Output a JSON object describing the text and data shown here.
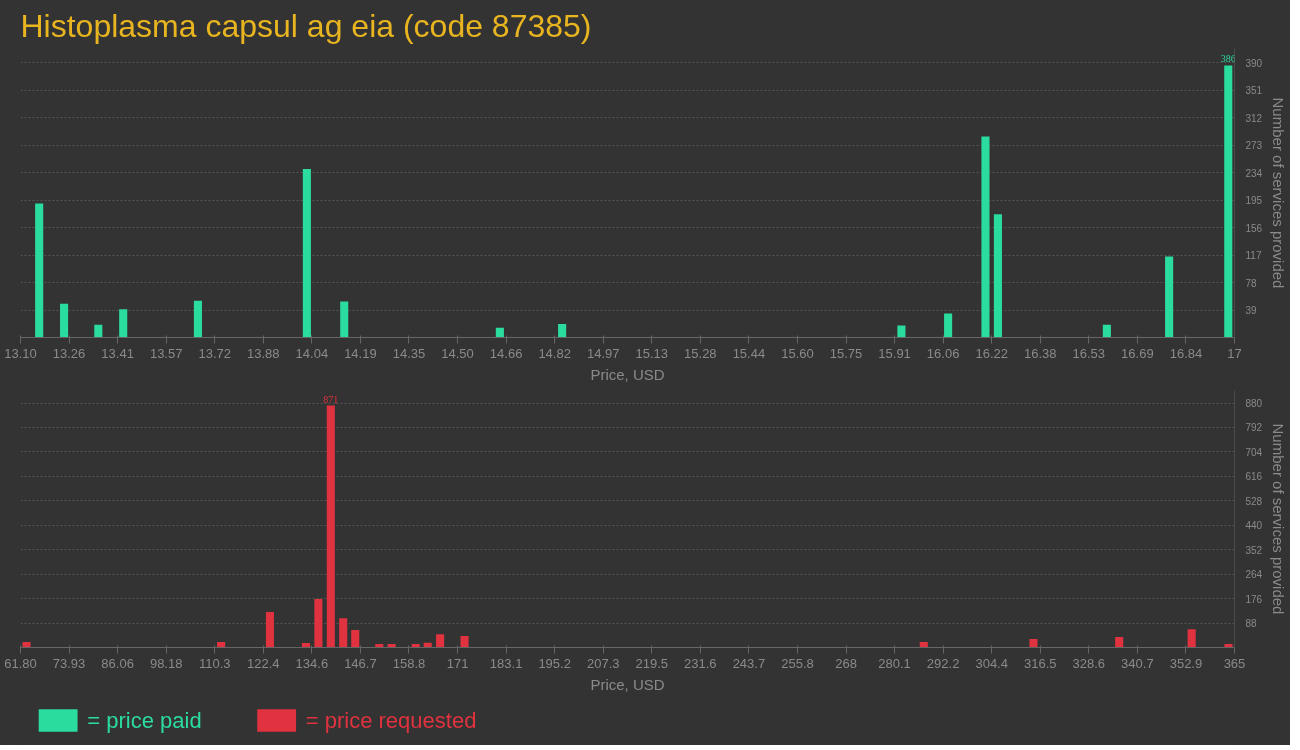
{
  "chart_data": [
    {
      "type": "bar",
      "title": "Histoplasma capsul ag eia (code 87385)",
      "xlabel": "Price, USD",
      "ylabel": "Number of services provided",
      "series": [
        {
          "name": "= price paid",
          "color": "#2bdc9f",
          "x": [
            13.16,
            13.24,
            13.35,
            13.43,
            13.67,
            14.02,
            14.14,
            14.64,
            14.84,
            15.93,
            16.08,
            16.2,
            16.24,
            16.59,
            16.79,
            16.98
          ],
          "values": [
            190,
            48,
            18,
            40,
            52,
            239,
            51,
            14,
            19,
            17,
            34,
            285,
            175,
            18,
            115,
            386
          ],
          "value_labels": [
            null,
            null,
            null,
            null,
            null,
            null,
            null,
            null,
            null,
            null,
            null,
            null,
            null,
            null,
            null,
            "386"
          ]
        }
      ],
      "xlim": [
        13.1,
        17
      ],
      "ylim": [
        0,
        410
      ],
      "xticks": [
        {
          "value": 13.1,
          "label": "13.10"
        },
        {
          "value": 13.256,
          "label": "13.26"
        },
        {
          "value": 13.412,
          "label": "13.41"
        },
        {
          "value": 13.568,
          "label": "13.57"
        },
        {
          "value": 13.724,
          "label": "13.72"
        },
        13.88,
        {
          "value": 14.036,
          "label": "14.04"
        },
        {
          "value": 14.192,
          "label": "14.19"
        },
        {
          "value": 14.348,
          "label": "14.35"
        },
        {
          "value": 14.504,
          "label": "14.50"
        },
        14.66,
        {
          "value": 14.816,
          "label": "14.82"
        },
        {
          "value": 14.972,
          "label": "14.97"
        },
        {
          "value": 15.128,
          "label": "15.13"
        },
        {
          "value": 15.284,
          "label": "15.28"
        },
        15.44,
        {
          "value": 15.596,
          "label": "15.60"
        },
        {
          "value": 15.752,
          "label": "15.75"
        },
        {
          "value": 15.908,
          "label": "15.91"
        },
        {
          "value": 16.064,
          "label": "16.06"
        },
        16.22,
        {
          "value": 16.376,
          "label": "16.38"
        },
        {
          "value": 16.532,
          "label": "16.53"
        },
        {
          "value": 16.688,
          "label": "16.69"
        },
        {
          "value": 16.844,
          "label": "16.84"
        },
        17
      ],
      "yticks": [
        39,
        78,
        117,
        156,
        195,
        234,
        273,
        312,
        351,
        390
      ],
      "grid": "y",
      "legend": "bottom left"
    },
    {
      "type": "bar",
      "xlabel": "Price, USD",
      "ylabel": "Number of services provided",
      "series": [
        {
          "name": "= price requested",
          "color": "#e0323f",
          "x": [
            63.3,
            111.9,
            124.1,
            133.1,
            136.2,
            139.3,
            142.4,
            145.4,
            151.4,
            154.5,
            160.5,
            163.5,
            166.6,
            172.7,
            287.4,
            314.8,
            336.2,
            354.3,
            363.5
          ],
          "values": [
            20,
            20,
            128,
            16,
            175,
            871,
            105,
            63,
            13,
            13,
            13,
            17,
            48,
            41,
            20,
            31,
            38,
            66,
            13
          ],
          "value_labels": [
            null,
            null,
            null,
            null,
            null,
            "871",
            null,
            null,
            null,
            null,
            null,
            null,
            null,
            null,
            null,
            null,
            null,
            null,
            null
          ]
        }
      ],
      "xlim": [
        61.8,
        365
      ],
      "ylim": [
        0,
        925
      ],
      "xticks": [
        {
          "value": 61.8,
          "label": "61.80"
        },
        {
          "value": 73.928,
          "label": "73.93"
        },
        {
          "value": 86.056,
          "label": "86.06"
        },
        {
          "value": 98.184,
          "label": "98.18"
        },
        {
          "value": 110.312,
          "label": "110.3"
        },
        {
          "value": 122.44,
          "label": "122.4"
        },
        {
          "value": 134.568,
          "label": "134.6"
        },
        {
          "value": 146.696,
          "label": "146.7"
        },
        {
          "value": 158.824,
          "label": "158.8"
        },
        {
          "value": 170.952,
          "label": "171"
        },
        {
          "value": 183.08,
          "label": "183.1"
        },
        {
          "value": 195.208,
          "label": "195.2"
        },
        {
          "value": 207.336,
          "label": "207.3"
        },
        {
          "value": 219.464,
          "label": "219.5"
        },
        {
          "value": 231.592,
          "label": "231.6"
        },
        {
          "value": 243.72,
          "label": "243.7"
        },
        {
          "value": 255.848,
          "label": "255.8"
        },
        {
          "value": 267.976,
          "label": "268"
        },
        {
          "value": 280.104,
          "label": "280.1"
        },
        {
          "value": 292.232,
          "label": "292.2"
        },
        {
          "value": 304.36,
          "label": "304.4"
        },
        {
          "value": 316.488,
          "label": "316.5"
        },
        {
          "value": 328.616,
          "label": "328.6"
        },
        {
          "value": 340.744,
          "label": "340.7"
        },
        {
          "value": 352.872,
          "label": "352.9"
        },
        365
      ],
      "yticks": [
        88,
        176,
        264,
        352,
        440,
        528,
        616,
        704,
        792,
        880
      ],
      "grid": "y",
      "legend": "bottom left"
    }
  ]
}
